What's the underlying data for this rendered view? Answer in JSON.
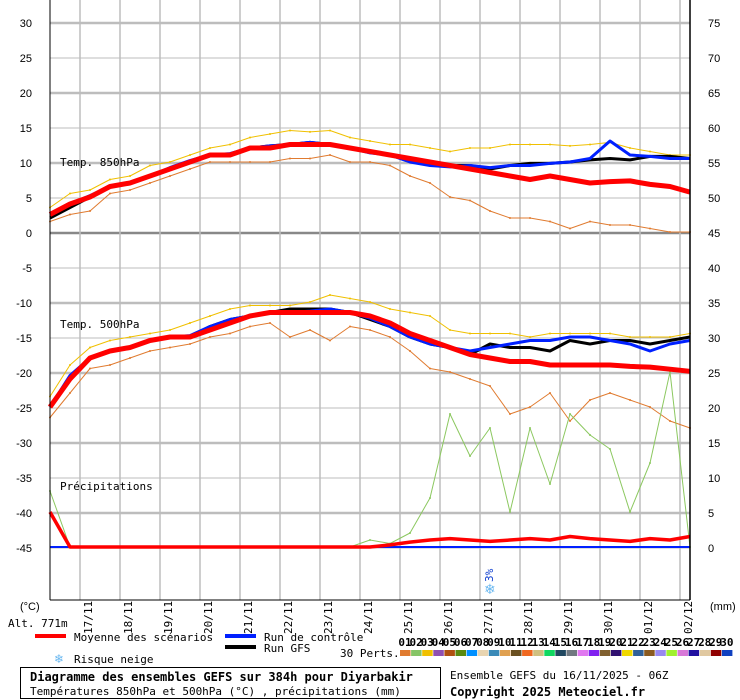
{
  "chart_data": {
    "type": "line",
    "title": "Diagramme des ensembles GEFS sur 384h pour Diyarbakir",
    "subtitle": "Températures 850hPa et 500hPa (°C) , précipitations (mm)",
    "run_info": "Ensemble GEFS du 16/11/2025 - 06Z",
    "copyright": "Copyright 2025 Meteociel.fr",
    "altitude": "Alt. 771m",
    "left_unit": "(°C)",
    "right_unit": "(mm)",
    "left_ticks": [
      "30",
      "25",
      "20",
      "15",
      "10",
      "5",
      "0",
      "-5",
      "-10",
      "-15",
      "-20",
      "-25",
      "-30",
      "-35",
      "-40",
      "-45"
    ],
    "right_ticks": [
      "75",
      "70",
      "65",
      "60",
      "55",
      "50",
      "45",
      "40",
      "35",
      "30",
      "25",
      "20",
      "15",
      "10",
      "5",
      "0"
    ],
    "ylim_temp": [
      -45,
      30
    ],
    "ylim_precip": [
      0,
      75
    ],
    "grid": true,
    "x_step_hours": 12,
    "x_range_hours": [
      0,
      384
    ],
    "date_labels": [
      "17/11",
      "18/11",
      "19/11",
      "20/11",
      "21/11",
      "22/11",
      "23/11",
      "24/11",
      "25/11",
      "26/11",
      "27/11",
      "28/11",
      "29/11",
      "30/11",
      "01/12",
      "02/12"
    ],
    "panel_labels": {
      "t850": "Temp. 850hPa",
      "t500": "Temp. 500hPa",
      "precip": "Précipitations"
    },
    "series": {
      "t850_mean": [
        2.5,
        4,
        5,
        6.5,
        7,
        8,
        9,
        10,
        11,
        11,
        12,
        12,
        12.5,
        12.5,
        12.5,
        12,
        11.5,
        11,
        10.5,
        10,
        9.5,
        9,
        8.5,
        8,
        7.5,
        8,
        7.5,
        7,
        7.2,
        7.3,
        6.8,
        6.5,
        5.7
      ],
      "t850_control": [
        2.5,
        4,
        5.2,
        6.5,
        7,
        8,
        9.2,
        10.2,
        11,
        11.2,
        12,
        12.3,
        12.5,
        12.8,
        12.5,
        12,
        11.3,
        11,
        10,
        9.5,
        9.3,
        9.5,
        9.2,
        9.5,
        9.5,
        9.8,
        10,
        10.5,
        13,
        11,
        10.8,
        10.5,
        10.5
      ],
      "t850_gfs": [
        2,
        3.5,
        5,
        6.5,
        7,
        8,
        9,
        10,
        11,
        11,
        12,
        12.3,
        12.5,
        12.8,
        12.5,
        12,
        11.5,
        11,
        10.5,
        10,
        9.5,
        9.5,
        9,
        9.5,
        9.8,
        9.8,
        10,
        10.3,
        10.5,
        10.3,
        10.8,
        10.8,
        10.5
      ],
      "t850_max": [
        3.5,
        5.5,
        6,
        7.5,
        8,
        9.5,
        10,
        11,
        12,
        12.5,
        13.5,
        14,
        14.5,
        14.3,
        14.5,
        13.5,
        13,
        12.5,
        12.5,
        12,
        11.5,
        12,
        12,
        12.5,
        12.5,
        12.5,
        12.3,
        12.5,
        12.8,
        12,
        11.5,
        11,
        11
      ],
      "t850_min": [
        1.5,
        2.5,
        3,
        5.5,
        6,
        7,
        8,
        9,
        10,
        10,
        10,
        10,
        10.5,
        10.5,
        11,
        10,
        10,
        9.5,
        8,
        7,
        5,
        4.5,
        3,
        2,
        2,
        1.5,
        0.5,
        1.5,
        1,
        1,
        0.5,
        0,
        0
      ],
      "t500_mean": [
        -25,
        -21,
        -18,
        -17,
        -16.5,
        -15.5,
        -15,
        -15,
        -14,
        -13,
        -12,
        -11.5,
        -11.5,
        -11.5,
        -11.5,
        -11.5,
        -12,
        -13,
        -14.5,
        -15.5,
        -16.5,
        -17.5,
        -18,
        -18.5,
        -18.5,
        -19,
        -19,
        -19,
        -19,
        -19.2,
        -19.3,
        -19.6,
        -19.9
      ],
      "t500_control": [
        -25,
        -20.5,
        -18,
        -17,
        -16.5,
        -15.5,
        -15,
        -14.8,
        -13.5,
        -12.5,
        -12,
        -11.5,
        -11.5,
        -11.3,
        -11,
        -11.5,
        -12.3,
        -13.5,
        -15,
        -16,
        -16.5,
        -17,
        -16.5,
        -16,
        -15.5,
        -15.5,
        -15,
        -15,
        -15.5,
        -16,
        -17,
        -16,
        -15.5
      ],
      "t500_gfs": [
        -25,
        -21,
        -18,
        -17,
        -16.5,
        -15.5,
        -15,
        -15,
        -13.5,
        -12.5,
        -12,
        -11.5,
        -11,
        -11,
        -11,
        -11.5,
        -12.5,
        -13.5,
        -15,
        -16,
        -16.5,
        -17.5,
        -16,
        -16.5,
        -16.5,
        -17,
        -15.5,
        -16,
        -15.5,
        -15.5,
        -16,
        -15.5,
        -15
      ],
      "t500_max": [
        -23.5,
        -19,
        -16.5,
        -15.5,
        -15,
        -14.5,
        -14,
        -13,
        -12,
        -11,
        -10.5,
        -10.5,
        -10.5,
        -10,
        -9,
        -9.5,
        -10,
        -11,
        -11.5,
        -12,
        -14,
        -14.5,
        -14.5,
        -14.5,
        -15,
        -14.5,
        -14.5,
        -14.5,
        -14.5,
        -15,
        -15,
        -15,
        -14.5
      ],
      "t500_min": [
        -26.5,
        -23,
        -19.5,
        -19,
        -18,
        -17,
        -16.5,
        -16,
        -15,
        -14.5,
        -13.5,
        -13,
        -15,
        -14,
        -15.5,
        -13.5,
        -14,
        -15,
        -17,
        -19.5,
        -20,
        -21,
        -22,
        -26,
        -25,
        -23,
        -27,
        -24,
        -23,
        -24,
        -25,
        -27,
        -28
      ],
      "precip_mean": [
        5,
        0,
        0,
        0,
        0,
        0,
        0,
        0,
        0,
        0,
        0,
        0,
        0,
        0,
        0,
        0,
        0,
        0.3,
        0.7,
        1,
        1.2,
        1,
        0.8,
        1,
        1.2,
        1,
        1.5,
        1.2,
        1,
        0.8,
        1.2,
        1,
        1.5
      ],
      "precip_max": [
        8,
        0,
        0,
        0,
        0,
        0,
        0,
        0,
        0,
        0,
        0,
        0,
        0,
        0,
        0,
        0,
        1,
        0.5,
        2,
        7,
        19,
        13,
        17,
        5,
        17,
        9,
        19,
        16,
        14,
        5,
        12,
        25,
        0
      ]
    },
    "legend": {
      "mean": "Moyenne des scénarios",
      "control": "Run de contrôle",
      "gfs": "Run GFS",
      "snow": "Risque neige",
      "perts": "30 Perts."
    },
    "snow_marker": {
      "label": "3%",
      "hour": 264
    },
    "colors": {
      "mean": "#ff0000",
      "control": "#0020ff",
      "gfs": "#000000",
      "spread_hi": "#f0c000",
      "spread_lo": "#e07b30",
      "precip_max": "#8cc860",
      "grid": "#bdbdbd"
    },
    "perts": [
      {
        "label": "01",
        "color": "#e07b30"
      },
      {
        "label": "02",
        "color": "#86c466"
      },
      {
        "label": "03",
        "color": "#f0c000"
      },
      {
        "label": "04",
        "color": "#9050b0"
      },
      {
        "label": "05",
        "color": "#b05010"
      },
      {
        "label": "06",
        "color": "#5a8a10"
      },
      {
        "label": "07",
        "color": "#0090ff"
      },
      {
        "label": "08",
        "color": "#e8d4b0"
      },
      {
        "label": "09",
        "color": "#3a8ab8"
      },
      {
        "label": "10",
        "color": "#e0a050"
      },
      {
        "label": "11",
        "color": "#6a5020"
      },
      {
        "label": "12",
        "color": "#f06820"
      },
      {
        "label": "13",
        "color": "#d0c080"
      },
      {
        "label": "14",
        "color": "#10d860"
      },
      {
        "label": "15",
        "color": "#204860"
      },
      {
        "label": "16",
        "color": "#707880"
      },
      {
        "label": "17",
        "color": "#e078f0"
      },
      {
        "label": "18",
        "color": "#8020f0"
      },
      {
        "label": "19",
        "color": "#806030"
      },
      {
        "label": "20",
        "color": "#301070"
      },
      {
        "label": "21",
        "color": "#f0d800"
      },
      {
        "label": "22",
        "color": "#306098"
      },
      {
        "label": "23",
        "color": "#8a5a20"
      },
      {
        "label": "24",
        "color": "#9888f0"
      },
      {
        "label": "25",
        "color": "#a0f030"
      },
      {
        "label": "26",
        "color": "#d878d8"
      },
      {
        "label": "27",
        "color": "#2010a0"
      },
      {
        "label": "28",
        "color": "#e0c8a0"
      },
      {
        "label": "29",
        "color": "#900000"
      },
      {
        "label": "30",
        "color": "#1040c0"
      }
    ]
  }
}
